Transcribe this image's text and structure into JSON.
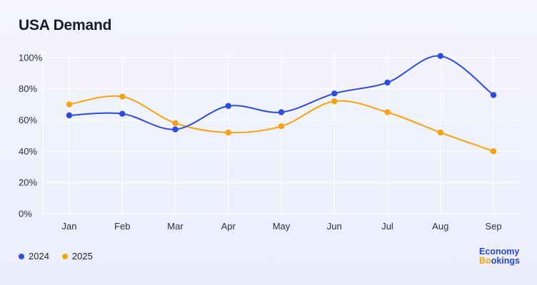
{
  "title": "USA Demand",
  "brand": {
    "line1": "Economy",
    "line2_accent": "Bo",
    "line2_rest": "okings"
  },
  "colors": {
    "series_2024": "#2c4ce0",
    "series_2025": "#f8a30c",
    "grid": "#ffffff"
  },
  "chart_data": {
    "type": "line",
    "categories": [
      "Jan",
      "Feb",
      "Mar",
      "Apr",
      "May",
      "Jun",
      "Jul",
      "Aug",
      "Sep"
    ],
    "series": [
      {
        "name": "2024",
        "values": [
          63,
          64,
          54,
          69,
          65,
          77,
          84,
          101,
          76
        ]
      },
      {
        "name": "2025",
        "values": [
          70,
          75,
          58,
          52,
          56,
          72,
          65,
          52,
          40
        ]
      }
    ],
    "y_ticks": [
      "0%",
      "20%",
      "40%",
      "60%",
      "80%",
      "100%"
    ],
    "ylim": [
      0,
      100
    ],
    "grid": true,
    "legend": "bottom-left",
    "smooth": true
  }
}
